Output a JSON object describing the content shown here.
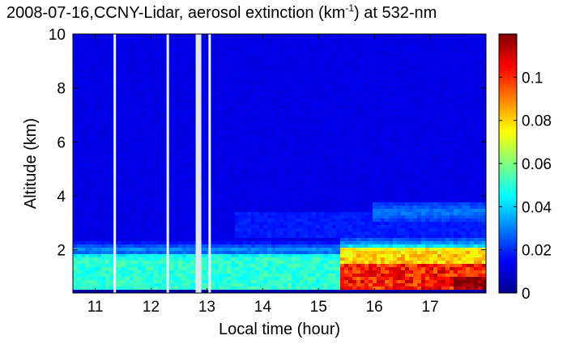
{
  "chart_data": {
    "type": "heatmap",
    "title": {
      "prefix": "2008-07-16,CCNY-Lidar, aerosol extinction (km",
      "sup": "-1",
      "suffix": ") at 532-nm"
    },
    "xlabel": "Local time (hour)",
    "ylabel": "Altitude (km)",
    "xlim": [
      10.6,
      18.0
    ],
    "ylim": [
      0.4,
      10.0
    ],
    "x_ticks": [
      11,
      12,
      13,
      14,
      15,
      16,
      17
    ],
    "y_ticks": [
      2,
      4,
      6,
      8,
      10
    ],
    "colorbar": {
      "colormap": "jet",
      "range": [
        0,
        0.12
      ],
      "ticks": [
        0,
        0.02,
        0.04,
        0.06,
        0.08,
        0.1
      ]
    },
    "missing_data_columns": [
      11.35,
      12.3,
      12.85,
      13.05
    ],
    "structures": [
      {
        "name": "boundary layer",
        "x_range": [
          10.6,
          15.4
        ],
        "top_altitude": 2.0,
        "value": 0.05
      },
      {
        "name": "boundary layer",
        "x_range": [
          15.4,
          18.0
        ],
        "top_altitude": 2.25,
        "value": 0.09
      },
      {
        "name": "aloft layer",
        "x_range": [
          16.0,
          18.0
        ],
        "altitude_range": [
          3.0,
          3.8
        ],
        "value": 0.03
      },
      {
        "name": "background",
        "x_range": [
          10.6,
          18.0
        ],
        "altitude_range": [
          2.2,
          10.0
        ],
        "value": 0.012
      }
    ]
  }
}
